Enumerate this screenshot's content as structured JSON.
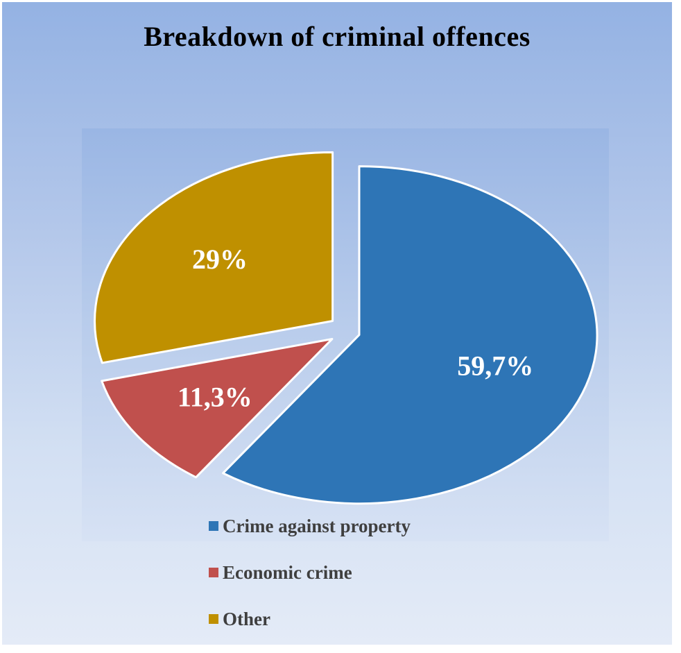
{
  "chart_data": {
    "type": "pie",
    "title": "Breakdown of criminal offences",
    "slices": [
      {
        "name": "Crime against property",
        "value": 59.7,
        "label": "59,7%",
        "color": "#2e75b6"
      },
      {
        "name": "Economic crime",
        "value": 11.3,
        "label": "11,3%",
        "color": "#c0504d"
      },
      {
        "name": "Other",
        "value": 29,
        "label": "29%",
        "color": "#bf9000"
      }
    ],
    "legend_position": "bottom-left",
    "exploded": true
  }
}
